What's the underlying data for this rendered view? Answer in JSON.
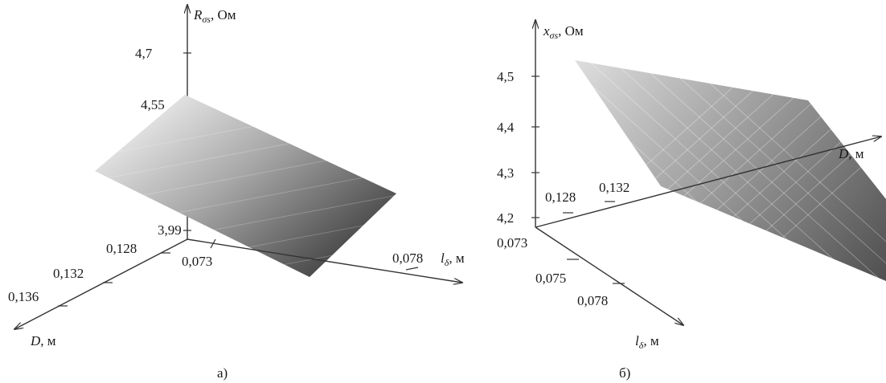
{
  "chart_data": [
    {
      "type": "surface",
      "panel_caption": "а)",
      "z_axis": {
        "symbol": "R",
        "subscript": "σs",
        "unit": ", Ом",
        "ticks": [
          "4,7",
          "4,55",
          "3,99"
        ]
      },
      "x_axis": {
        "symbol": "l",
        "subscript": "δ",
        "unit": ", м",
        "ticks": [
          "0,073",
          "0,078"
        ]
      },
      "y_axis": {
        "symbol": "D",
        "unit": ", м",
        "ticks": [
          "0,128",
          "0,132",
          "0,136"
        ]
      },
      "surface": {
        "corners": [
          {
            "D": 0.128,
            "l": 0.073,
            "z": 4.55
          },
          {
            "D": 0.136,
            "l": 0.073,
            "z": 4.27
          },
          {
            "D": 0.136,
            "l": 0.078,
            "z": 3.99
          },
          {
            "D": 0.128,
            "l": 0.078,
            "z": 4.27
          }
        ]
      }
    },
    {
      "type": "surface",
      "panel_caption": "б)",
      "z_axis": {
        "symbol": "x",
        "subscript": "σs",
        "unit": ", Ом",
        "ticks": [
          "4,5",
          "4,4",
          "4,3",
          "4,2"
        ]
      },
      "x_axis": {
        "symbol": "l",
        "subscript": "δ",
        "unit": ", м",
        "ticks": [
          "0,073",
          "0,075",
          "0,078"
        ]
      },
      "y_axis": {
        "symbol": "D",
        "unit": ", м",
        "ticks": [
          "0,128",
          "0,132"
        ]
      },
      "surface": {
        "corners": [
          {
            "D": 0.128,
            "l": 0.073,
            "z": 4.52
          },
          {
            "D": 0.136,
            "l": 0.073,
            "z": 4.43
          },
          {
            "D": 0.136,
            "l": 0.078,
            "z": 4.18
          },
          {
            "D": 0.128,
            "l": 0.078,
            "z": 4.3
          }
        ]
      }
    }
  ]
}
